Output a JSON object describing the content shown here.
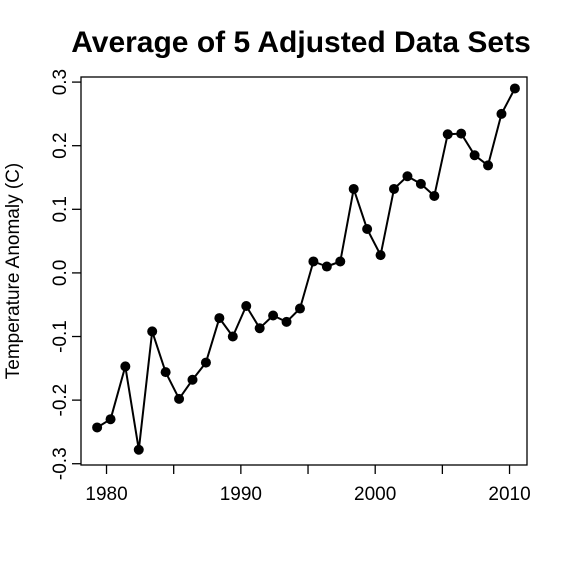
{
  "chart_data": {
    "type": "line",
    "title": "Average of 5 Adjusted Data Sets",
    "xlabel": "",
    "ylabel": "Temperature Anomaly (C)",
    "xlim": [
      1978.1,
      2011.3
    ],
    "ylim": [
      -0.302,
      0.308
    ],
    "xticks": [
      1980,
      1990,
      2000,
      2010
    ],
    "yticks": [
      -0.3,
      -0.2,
      -0.1,
      0.0,
      0.1,
      0.2,
      0.3
    ],
    "ytick_labels": [
      "-0.3",
      "-0.2",
      "-0.1",
      "0.0",
      "0.1",
      "0.2",
      "0.3"
    ],
    "grid": false,
    "legend": "none",
    "line_color": "#000000",
    "marker": "filled-circle",
    "x": [
      1979.3,
      1980.3,
      1981.4,
      1982.4,
      1983.4,
      1984.4,
      1985.4,
      1986.4,
      1987.4,
      1988.4,
      1989.4,
      1990.4,
      1991.4,
      1992.4,
      1993.4,
      1994.4,
      1995.4,
      1996.4,
      1997.4,
      1998.4,
      1999.4,
      2000.4,
      2001.4,
      2002.4,
      2003.4,
      2004.4,
      2005.4,
      2006.4,
      2007.4,
      2008.4,
      2009.4,
      2010.4
    ],
    "y": [
      -0.243,
      -0.23,
      -0.147,
      -0.278,
      -0.092,
      -0.156,
      -0.198,
      -0.168,
      -0.141,
      -0.071,
      -0.1,
      -0.052,
      -0.087,
      -0.067,
      -0.077,
      -0.056,
      0.018,
      0.01,
      0.018,
      0.132,
      0.069,
      0.028,
      0.132,
      0.152,
      0.14,
      0.121,
      0.218,
      0.219,
      0.185,
      0.169,
      0.25,
      0.29
    ]
  }
}
